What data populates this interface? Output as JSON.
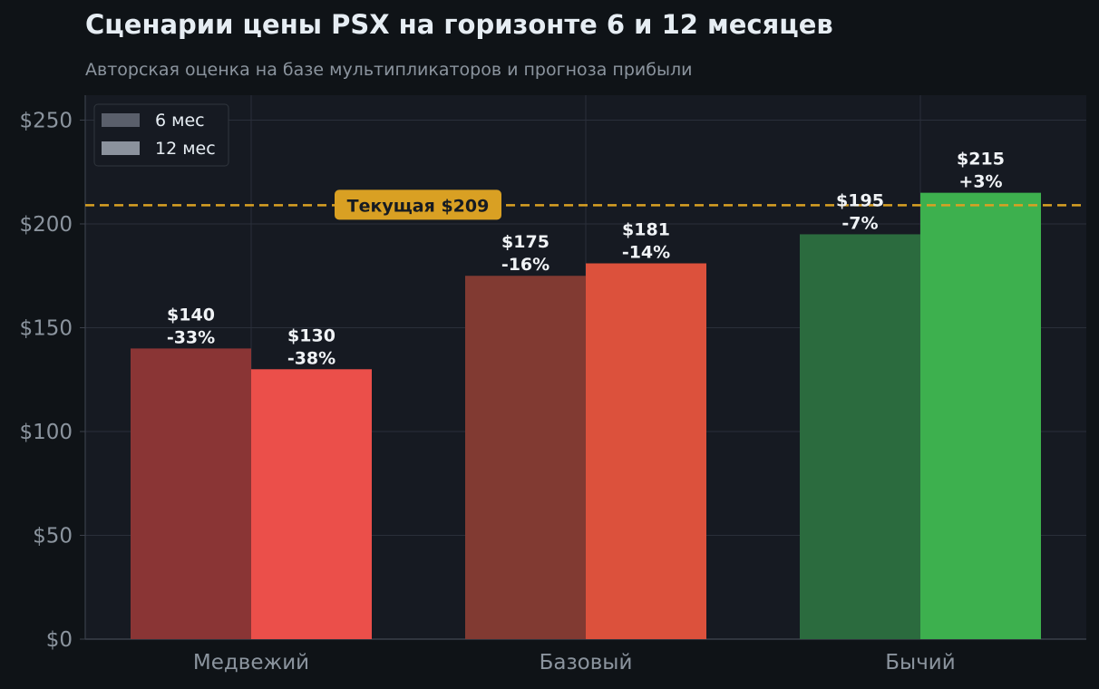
{
  "chart_data": {
    "type": "bar",
    "title": "Сценарии цены PSX на горизонте 6 и 12 месяцев",
    "subtitle": "Авторская оценка на базе мультипликаторов и прогноза прибыли",
    "xlabel": "",
    "ylabel": "",
    "categories": [
      "Медвежий",
      "Базовый",
      "Бычий"
    ],
    "series": [
      {
        "name": "6 мес",
        "values": [
          140,
          175,
          195
        ],
        "labels": [
          "$140\n-33%",
          "$175\n-16%",
          "$195\n-7%"
        ],
        "colors": [
          "#8a3535",
          "#813a32",
          "#2b6b3e"
        ],
        "legend_color": "#5a5f6b"
      },
      {
        "name": "12 мес",
        "values": [
          130,
          181,
          215
        ],
        "labels": [
          "$130\n-38%",
          "$181\n-14%",
          "$215\n+3%"
        ],
        "colors": [
          "#eb4f4a",
          "#dc513c",
          "#3db04e"
        ],
        "legend_color": "#8b929d"
      }
    ],
    "ylim": [
      0,
      262
    ],
    "yticks": [
      0,
      50,
      100,
      150,
      200,
      250
    ],
    "ytick_labels": [
      "$0",
      "$50",
      "$100",
      "$150",
      "$200",
      "$250"
    ],
    "reference_line": {
      "value": 209,
      "label": "Текущая $209",
      "color": "#d9a023",
      "style": "dashed"
    },
    "grid": true,
    "legend_position": "top-left",
    "colors": {
      "background": "#0f1317",
      "plot_background": "#161a22",
      "grid": "#2a2f3a",
      "axis": "#3a3f4a",
      "text": "#e6edf3",
      "muted_text": "#8b949e"
    }
  }
}
